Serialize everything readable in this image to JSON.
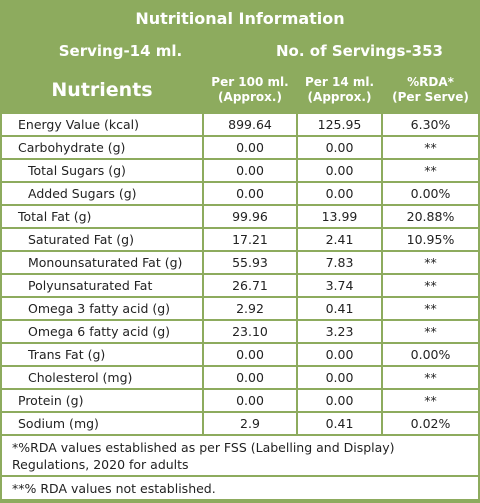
{
  "title": "Nutritional Information",
  "serving": "Serving-14 ml.",
  "servings_count": "No. of Servings-353",
  "headers": [
    "Nutrients",
    "Per 100 ml.\n(Approx.)",
    "Per 14 ml.\n(Approx.)",
    "%RDA*\n(Per Serve)"
  ],
  "rows": [
    [
      "Energy Value (kcal)",
      "899.64",
      "125.95",
      "6.30%"
    ],
    [
      "Carbohydrate (g)",
      "0.00",
      "0.00",
      "**"
    ],
    [
      "Total Sugars (g)",
      "0.00",
      "0.00",
      "**"
    ],
    [
      "Added Sugars (g)",
      "0.00",
      "0.00",
      "0.00%"
    ],
    [
      "Total Fat (g)",
      "99.96",
      "13.99",
      "20.88%"
    ],
    [
      "Saturated Fat (g)",
      "17.21",
      "2.41",
      "10.95%"
    ],
    [
      "Monounsaturated Fat (g)",
      "55.93",
      "7.83",
      "**"
    ],
    [
      "Polyunsaturated Fat",
      "26.71",
      "3.74",
      "**"
    ],
    [
      "Omega 3 fatty acid (g)",
      "2.92",
      "0.41",
      "**"
    ],
    [
      "Omega 6 fatty acid (g)",
      "23.10",
      "3.23",
      "**"
    ],
    [
      "Trans Fat (g)",
      "0.00",
      "0.00",
      "0.00%"
    ],
    [
      "Cholesterol (mg)",
      "0.00",
      "0.00",
      "**"
    ],
    [
      "Protein (g)",
      "0.00",
      "0.00",
      "**"
    ],
    [
      "Sodium (mg)",
      "2.9",
      "0.41",
      "0.02%"
    ]
  ],
  "notes": [
    "*%RDA values established as per FSS (Labelling and Display) Regulations, 2020 for adults",
    "**% RDA values not established."
  ]
}
